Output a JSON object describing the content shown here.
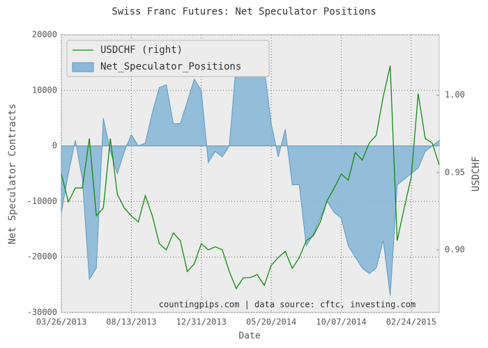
{
  "chart_data": {
    "type": "line",
    "title": "Swiss Franc Futures: Net Speculator Positions",
    "x_label": "Date",
    "y_label": "Net Speculator Contracts",
    "y2_label": "USDCHF",
    "annotation": "countingpips.com | data source: cftc, investing.com",
    "grid": true,
    "legend": "upper left",
    "x": [
      "2013-03-26",
      "2013-04-09",
      "2013-04-23",
      "2013-05-07",
      "2013-05-21",
      "2013-06-04",
      "2013-06-18",
      "2013-07-02",
      "2013-07-16",
      "2013-07-30",
      "2013-08-13",
      "2013-08-27",
      "2013-09-10",
      "2013-09-24",
      "2013-10-08",
      "2013-10-22",
      "2013-11-05",
      "2013-11-19",
      "2013-12-03",
      "2013-12-17",
      "2013-12-31",
      "2014-01-14",
      "2014-01-28",
      "2014-02-11",
      "2014-02-25",
      "2014-03-11",
      "2014-03-25",
      "2014-04-08",
      "2014-04-22",
      "2014-05-06",
      "2014-05-20",
      "2014-06-03",
      "2014-06-17",
      "2014-07-01",
      "2014-07-15",
      "2014-07-29",
      "2014-08-12",
      "2014-08-26",
      "2014-09-09",
      "2014-09-23",
      "2014-10-07",
      "2014-10-21",
      "2014-11-04",
      "2014-11-18",
      "2014-12-02",
      "2014-12-16",
      "2014-12-30",
      "2015-01-13",
      "2015-01-27",
      "2015-02-10",
      "2015-02-24",
      "2015-03-10",
      "2015-03-24",
      "2015-04-07",
      "2015-04-21"
    ],
    "xlim": [
      "2013-03-26",
      "2015-04-21"
    ],
    "xticks": [
      {
        "value": "2013-03-26",
        "label": "03/26/2013"
      },
      {
        "value": "2013-08-13",
        "label": "08/13/2013"
      },
      {
        "value": "2013-12-31",
        "label": "12/31/2013"
      },
      {
        "value": "2014-05-20",
        "label": "05/20/2014"
      },
      {
        "value": "2014-10-07",
        "label": "10/07/2014"
      },
      {
        "value": "2015-02-24",
        "label": "02/24/2015"
      }
    ],
    "ylim": [
      -30000,
      20000
    ],
    "yticks": [
      -30000,
      -20000,
      -10000,
      0,
      10000,
      20000
    ],
    "y2lim": [
      0.8595,
      1.039
    ],
    "y2ticks": [
      {
        "value": 0.9,
        "label": "0.90"
      },
      {
        "value": 0.95,
        "label": "0.95"
      },
      {
        "value": 1.0,
        "label": "1.00"
      }
    ],
    "series": [
      {
        "name": "USDCHF (right)",
        "type": "line",
        "axis": "y2",
        "color": "#138a13",
        "values": [
          0.949,
          0.931,
          0.94,
          0.94,
          0.972,
          0.922,
          0.927,
          0.972,
          0.936,
          0.927,
          0.922,
          0.918,
          0.935,
          0.922,
          0.904,
          0.9,
          0.911,
          0.906,
          0.886,
          0.891,
          0.904,
          0.9,
          0.902,
          0.9,
          0.886,
          0.875,
          0.882,
          0.882,
          0.884,
          0.877,
          0.89,
          0.895,
          0.899,
          0.888,
          0.895,
          0.906,
          0.909,
          0.918,
          0.932,
          0.94,
          0.949,
          0.945,
          0.963,
          0.958,
          0.969,
          0.974,
          0.999,
          1.019,
          0.906,
          0.927,
          0.947,
          1.001,
          0.972,
          0.969,
          0.955
        ]
      },
      {
        "name": "Net_Speculator_Positions",
        "type": "area",
        "color": "#8ab8d6",
        "values": [
          -12000,
          -5000,
          1000,
          -6000,
          -24000,
          -22000,
          5000,
          -1000,
          -5000,
          -1000,
          2000,
          0,
          500,
          6000,
          10500,
          11000,
          4000,
          4000,
          8000,
          12000,
          10000,
          -3000,
          -1000,
          -2000,
          0,
          15000,
          19000,
          15000,
          17000,
          14000,
          4000,
          -2000,
          3000,
          -7000,
          -7000,
          -18000,
          -16000,
          -13000,
          -10000,
          -12000,
          -13000,
          -18000,
          -20000,
          -22000,
          -23000,
          -22000,
          -17000,
          -27000,
          -7000,
          -6000,
          -5000,
          -4000,
          -1000,
          0,
          1000
        ]
      }
    ]
  }
}
